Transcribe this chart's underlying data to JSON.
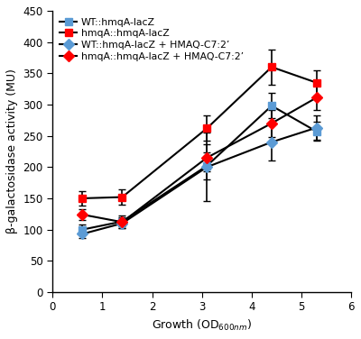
{
  "x": [
    0.6,
    1.4,
    3.1,
    4.4,
    5.3
  ],
  "series": [
    {
      "label": "WT::hmqA-lacZ",
      "line_color": "#000000",
      "marker": "s",
      "marker_facecolor": "#5B9BD5",
      "marker_edgecolor": "#5B9BD5",
      "y": [
        100,
        113,
        202,
        298,
        257
      ],
      "yerr": [
        8,
        10,
        22,
        20,
        15
      ]
    },
    {
      "label": "hmqA::hmqA-lacZ",
      "line_color": "#000000",
      "marker": "s",
      "marker_facecolor": "#FF0000",
      "marker_edgecolor": "#FF0000",
      "y": [
        150,
        152,
        262,
        360,
        335
      ],
      "yerr": [
        12,
        12,
        20,
        28,
        20
      ]
    },
    {
      "label": "WT::hmqA-lacZ + HMAQ-C7:2’",
      "line_color": "#000000",
      "marker": "D",
      "marker_facecolor": "#5B9BD5",
      "marker_edgecolor": "#5B9BD5",
      "y": [
        93,
        110,
        200,
        240,
        263
      ],
      "yerr": [
        7,
        8,
        55,
        30,
        20
      ]
    },
    {
      "label": "hmqA::hmqA-lacZ + HMAQ-C7:2’",
      "line_color": "#000000",
      "marker": "D",
      "marker_facecolor": "#FF0000",
      "marker_edgecolor": "#FF0000",
      "y": [
        124,
        112,
        215,
        270,
        311
      ],
      "yerr": [
        8,
        7,
        22,
        22,
        20
      ]
    }
  ],
  "xlabel": "Growth (OD$_{600nm}$)",
  "ylabel": "β-galactosidase activity (MU)",
  "xlim": [
    0,
    6
  ],
  "ylim": [
    0,
    450
  ],
  "yticks": [
    0,
    50,
    100,
    150,
    200,
    250,
    300,
    350,
    400,
    450
  ],
  "xticks": [
    0,
    1,
    2,
    3,
    4,
    5,
    6
  ],
  "legend_colors": [
    "#5B9BD5",
    "#FF0000",
    "#5B9BD5",
    "#FF0000"
  ],
  "legend_markers": [
    "s",
    "s",
    "D",
    "D"
  ],
  "background_color": "#ffffff"
}
